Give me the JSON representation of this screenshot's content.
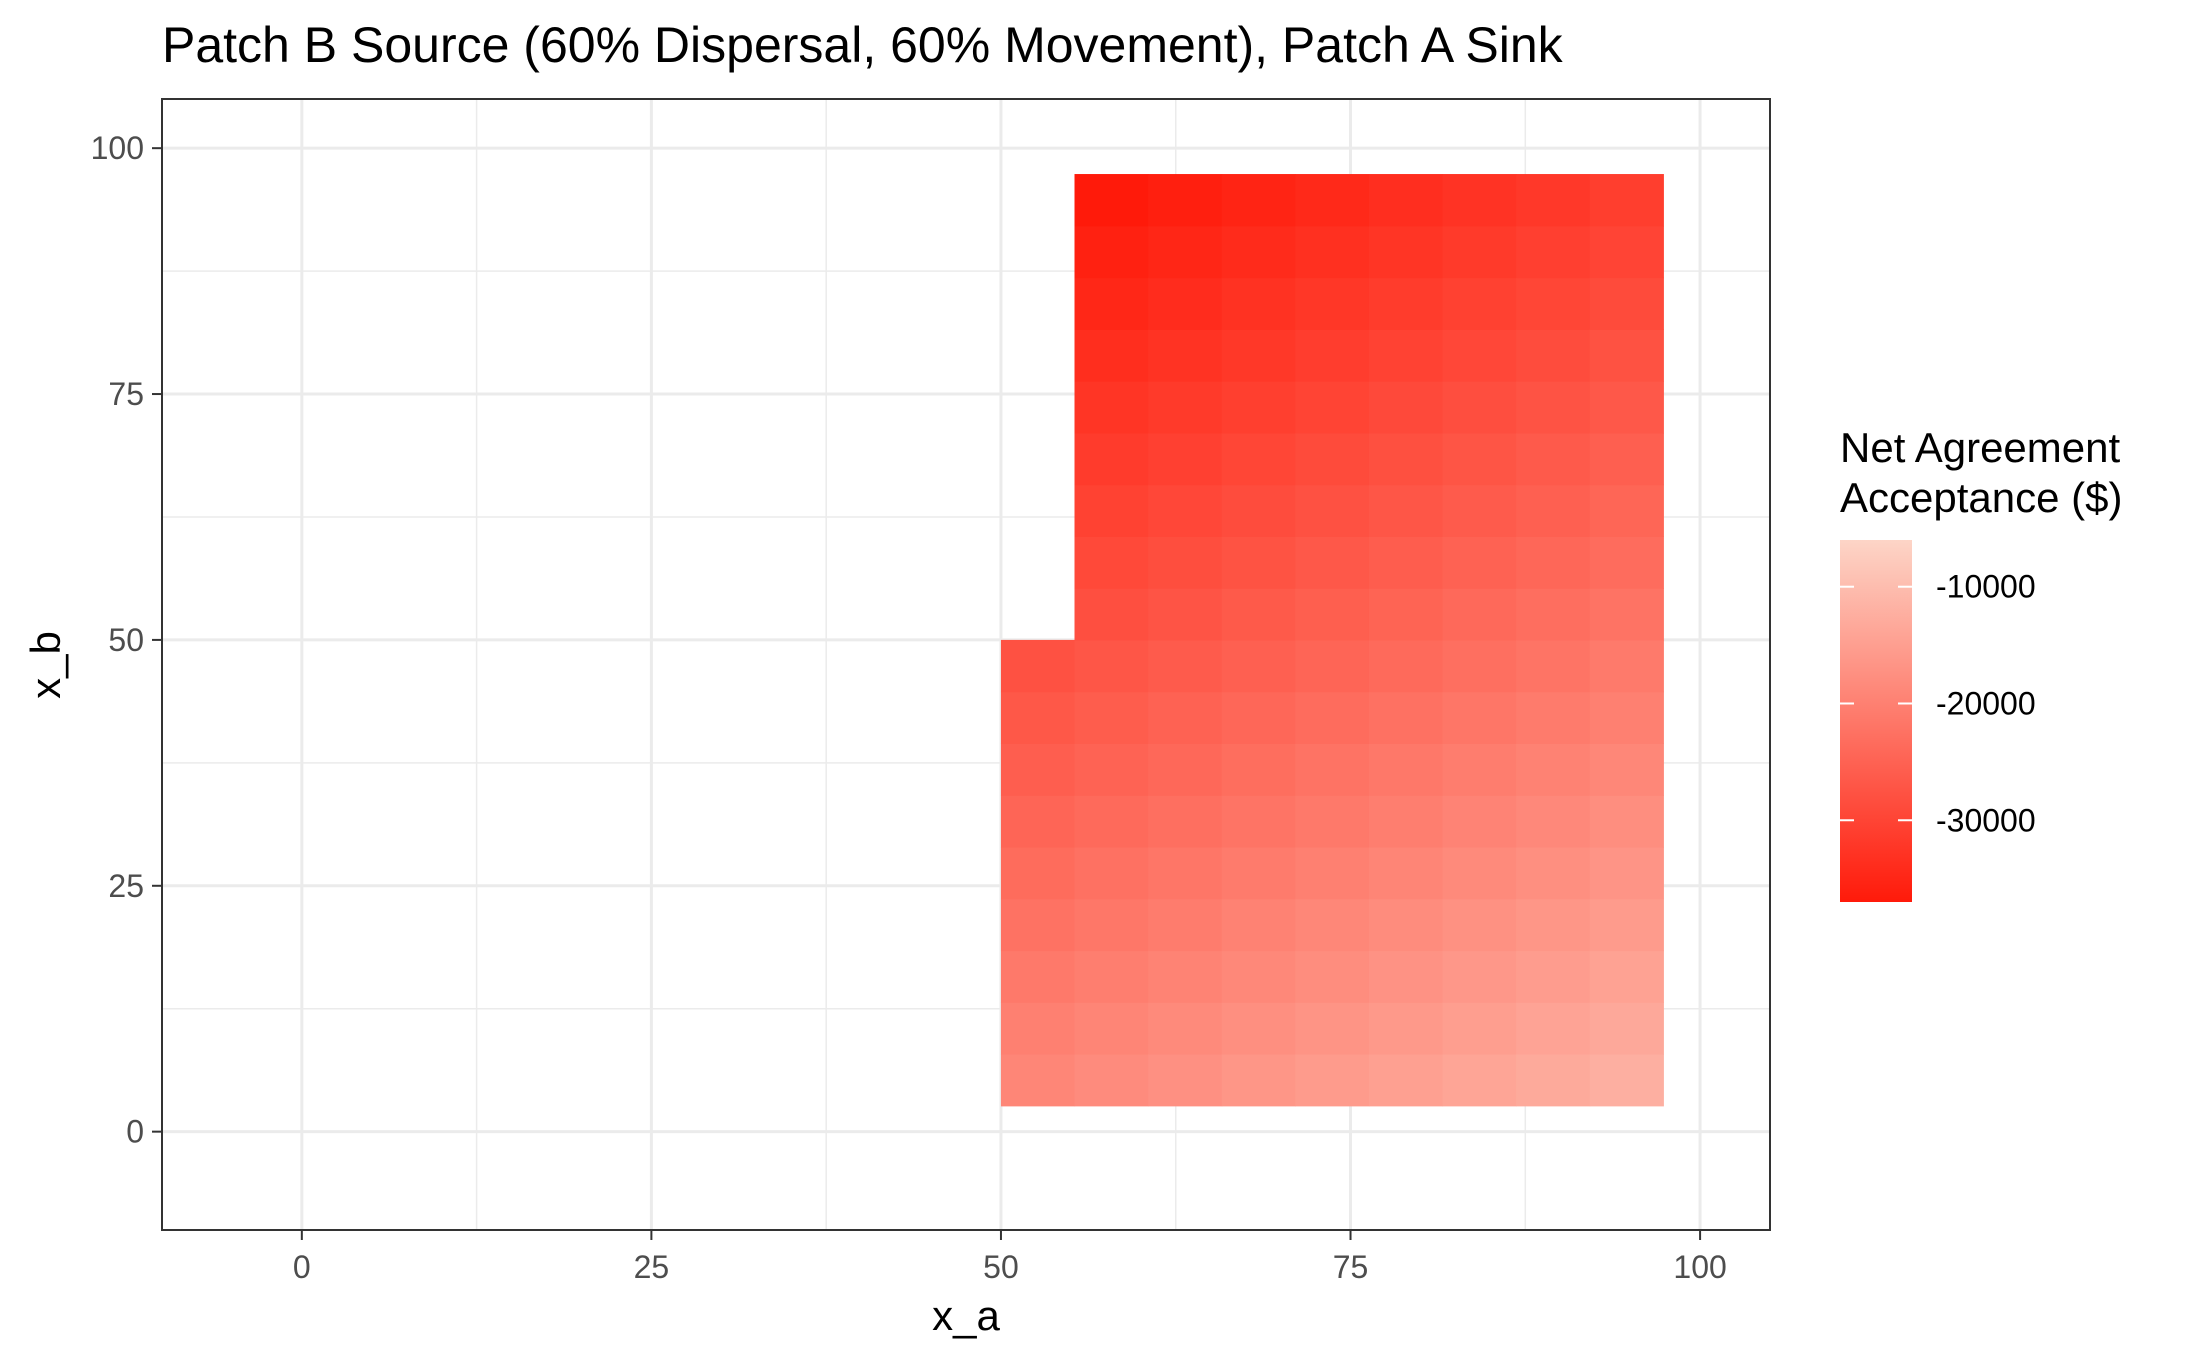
{
  "chart_data": {
    "type": "heatmap",
    "title": "Patch B Source (60% Dispersal, 60% Movement), Patch A Sink",
    "xlabel": "x_a",
    "ylabel": "x_b",
    "xlim": [
      -10,
      105
    ],
    "ylim": [
      -10,
      105
    ],
    "x_ticks": [
      0,
      25,
      50,
      75,
      100
    ],
    "y_ticks": [
      0,
      25,
      50,
      75,
      100
    ],
    "x_tick_labels": [
      "0",
      "25",
      "50",
      "75",
      "100"
    ],
    "y_tick_labels": [
      "0",
      "25",
      "50",
      "75",
      "100"
    ],
    "grid": true,
    "tile_width": 5.26,
    "tile_height": 5.26,
    "x_centers": [
      52.63,
      57.89,
      63.16,
      68.42,
      73.68,
      78.95,
      84.21,
      89.47,
      94.74
    ],
    "y_centers": [
      5.26,
      10.53,
      15.79,
      21.05,
      26.32,
      31.58,
      36.84,
      42.11,
      47.37,
      52.63,
      57.89,
      63.16,
      68.42,
      73.68,
      78.95,
      84.21,
      89.47,
      94.74
    ],
    "value_model": {
      "description": "",
      "base": -37000,
      "x_coef": 160,
      "y_coef": -210,
      "x_start": 57.89,
      "y_start": 94.74,
      "missing_region": {
        "x_max": 52.63,
        "y_min": 52.63
      }
    },
    "legend": {
      "title_lines": [
        "Net Agreement",
        "Acceptance ($)"
      ],
      "position": "right",
      "breaks": [
        -10000,
        -20000,
        -30000
      ],
      "break_labels": [
        "-10000",
        "-20000",
        "-30000"
      ],
      "range": [
        -37000,
        -6000
      ],
      "low_color": "#ff1a0a",
      "high_color": "#fdd5c7"
    },
    "panel_background": "#ffffff",
    "grid_color": "#ebebeb",
    "panel_border_color": "#333333"
  }
}
